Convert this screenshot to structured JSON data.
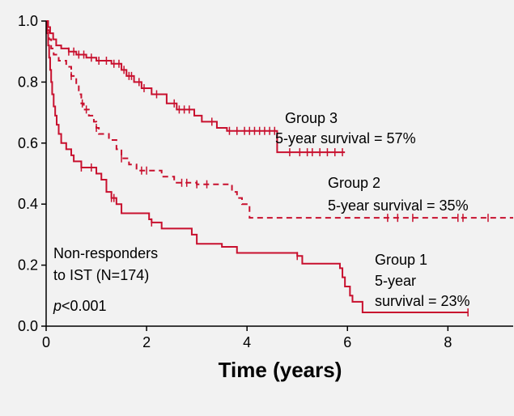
{
  "chart_data": {
    "type": "line",
    "subtype": "kaplan-meier",
    "title": "",
    "xlabel": "Time (years)",
    "ylabel": "",
    "xlim": [
      0,
      9.3
    ],
    "ylim": [
      0,
      1.0
    ],
    "xticks": [
      0,
      2,
      4,
      6,
      8
    ],
    "yticks": [
      0.0,
      0.2,
      0.4,
      0.6,
      0.8,
      1.0
    ],
    "xtick_labels": [
      "0",
      "2",
      "4",
      "6",
      "8"
    ],
    "ytick_labels": [
      "0.0",
      "0.2",
      "0.4",
      "0.6",
      "0.8",
      "1.0"
    ],
    "grid": false,
    "legend": "none",
    "line_color": "#c8102e",
    "series": [
      {
        "group": "Group 3",
        "line_style": "solid",
        "steps": [
          [
            0,
            1.0
          ],
          [
            0.04,
            0.98
          ],
          [
            0.08,
            0.96
          ],
          [
            0.14,
            0.94
          ],
          [
            0.2,
            0.92
          ],
          [
            0.3,
            0.91
          ],
          [
            0.45,
            0.9
          ],
          [
            0.6,
            0.89
          ],
          [
            0.8,
            0.88
          ],
          [
            1.0,
            0.87
          ],
          [
            1.3,
            0.86
          ],
          [
            1.5,
            0.84
          ],
          [
            1.6,
            0.82
          ],
          [
            1.75,
            0.8
          ],
          [
            1.9,
            0.78
          ],
          [
            2.1,
            0.76
          ],
          [
            2.4,
            0.73
          ],
          [
            2.6,
            0.71
          ],
          [
            2.95,
            0.69
          ],
          [
            3.1,
            0.67
          ],
          [
            3.4,
            0.65
          ],
          [
            3.6,
            0.64
          ],
          [
            4.6,
            0.57
          ],
          [
            5.95,
            0.57
          ]
        ],
        "censored": [
          0.45,
          0.55,
          0.65,
          0.75,
          0.9,
          1.05,
          1.2,
          1.35,
          1.45,
          1.55,
          1.65,
          1.7,
          1.85,
          1.95,
          2.2,
          2.55,
          2.65,
          2.75,
          2.85,
          3.3,
          3.65,
          3.8,
          3.95,
          4.05,
          4.15,
          4.25,
          4.35,
          4.45,
          4.55,
          4.85,
          5.05,
          5.2,
          5.3,
          5.45,
          5.6,
          5.75,
          5.9
        ]
      },
      {
        "group": "Group 2",
        "line_style": "dashed",
        "steps": [
          [
            0,
            1.0
          ],
          [
            0.03,
            0.97
          ],
          [
            0.06,
            0.94
          ],
          [
            0.1,
            0.91
          ],
          [
            0.15,
            0.89
          ],
          [
            0.25,
            0.87
          ],
          [
            0.4,
            0.85
          ],
          [
            0.5,
            0.82
          ],
          [
            0.6,
            0.79
          ],
          [
            0.65,
            0.76
          ],
          [
            0.7,
            0.73
          ],
          [
            0.75,
            0.71
          ],
          [
            0.85,
            0.69
          ],
          [
            0.95,
            0.67
          ],
          [
            1.0,
            0.65
          ],
          [
            1.05,
            0.63
          ],
          [
            1.25,
            0.61
          ],
          [
            1.4,
            0.58
          ],
          [
            1.5,
            0.55
          ],
          [
            1.65,
            0.53
          ],
          [
            1.8,
            0.51
          ],
          [
            2.3,
            0.49
          ],
          [
            2.55,
            0.47
          ],
          [
            3.0,
            0.465
          ],
          [
            3.7,
            0.44
          ],
          [
            3.8,
            0.42
          ],
          [
            3.9,
            0.4
          ],
          [
            4.05,
            0.355
          ],
          [
            9.3,
            0.355
          ]
        ],
        "censored": [
          0.5,
          0.72,
          0.8,
          1.0,
          1.5,
          1.9,
          2.0,
          2.7,
          2.8,
          3.0,
          3.2,
          6.8,
          7.0,
          7.3,
          8.2,
          8.3,
          8.8
        ]
      },
      {
        "group": "Group 1",
        "line_style": "solid",
        "steps": [
          [
            0,
            1.0
          ],
          [
            0.02,
            0.96
          ],
          [
            0.04,
            0.92
          ],
          [
            0.06,
            0.88
          ],
          [
            0.08,
            0.84
          ],
          [
            0.1,
            0.8
          ],
          [
            0.12,
            0.76
          ],
          [
            0.15,
            0.72
          ],
          [
            0.18,
            0.69
          ],
          [
            0.21,
            0.66
          ],
          [
            0.25,
            0.63
          ],
          [
            0.3,
            0.6
          ],
          [
            0.4,
            0.58
          ],
          [
            0.5,
            0.56
          ],
          [
            0.55,
            0.54
          ],
          [
            0.7,
            0.52
          ],
          [
            1.0,
            0.5
          ],
          [
            1.1,
            0.48
          ],
          [
            1.2,
            0.44
          ],
          [
            1.3,
            0.42
          ],
          [
            1.4,
            0.4
          ],
          [
            1.5,
            0.37
          ],
          [
            2.05,
            0.35
          ],
          [
            2.1,
            0.34
          ],
          [
            2.3,
            0.32
          ],
          [
            2.9,
            0.3
          ],
          [
            3.0,
            0.27
          ],
          [
            3.5,
            0.26
          ],
          [
            3.8,
            0.24
          ],
          [
            5.0,
            0.23
          ],
          [
            5.1,
            0.205
          ],
          [
            5.85,
            0.19
          ],
          [
            5.9,
            0.16
          ],
          [
            5.95,
            0.13
          ],
          [
            6.05,
            0.1
          ],
          [
            6.1,
            0.08
          ],
          [
            6.3,
            0.045
          ],
          [
            8.4,
            0.045
          ]
        ],
        "censored": [
          0.7,
          0.9,
          1.3,
          1.35,
          2.1,
          5.0,
          8.4
        ]
      }
    ],
    "annotations": {
      "group3": {
        "line1": "Group 3",
        "line2": "5-year survival  = 57%"
      },
      "group2": {
        "line1": "Group 2",
        "line2": "5-year survival  = 35%"
      },
      "group1": {
        "line1": "Group 1",
        "line2": "5-year",
        "line3": "survival  = 23%"
      },
      "cohort": {
        "line1": "Non-responders",
        "line2": "to IST (N=174)"
      },
      "pvalue": {
        "italic": "p",
        "rest": "<0.001"
      }
    }
  }
}
